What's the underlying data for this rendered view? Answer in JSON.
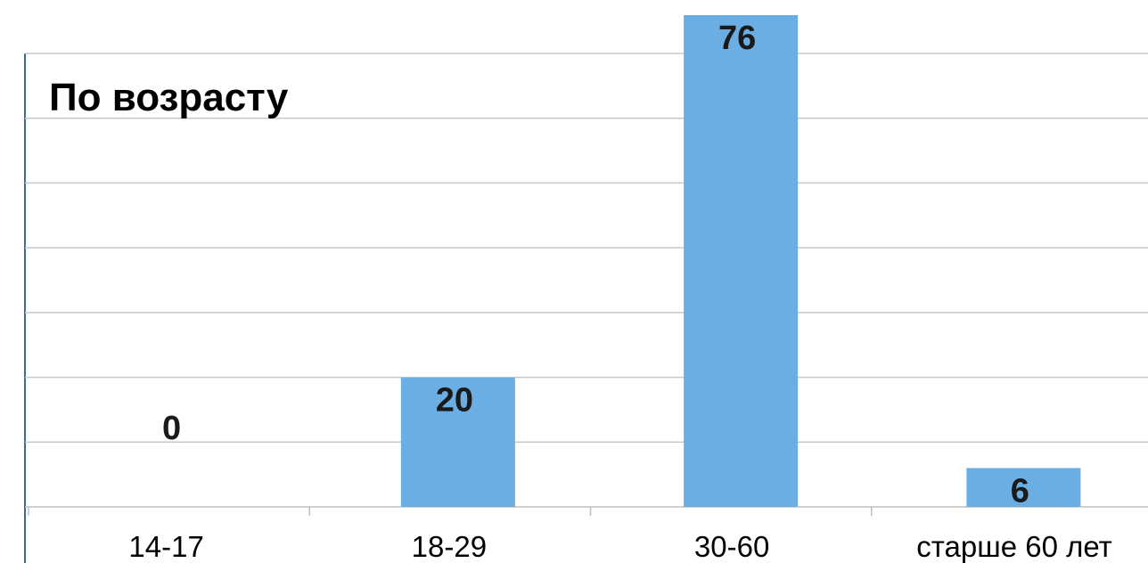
{
  "chart_data": {
    "type": "bar",
    "title": "По возрасту",
    "categories": [
      "14-17",
      "18-29",
      "30-60",
      "старше 60 лет"
    ],
    "values": [
      0,
      20,
      76,
      6
    ],
    "ylim": [
      0,
      76
    ],
    "grid": true,
    "legend": "none",
    "colors": {
      "bar": "#6aaee3",
      "grid": "#c8c8c8",
      "axis": "#bfbfbf",
      "left_rule": "#3a6a9a"
    }
  }
}
